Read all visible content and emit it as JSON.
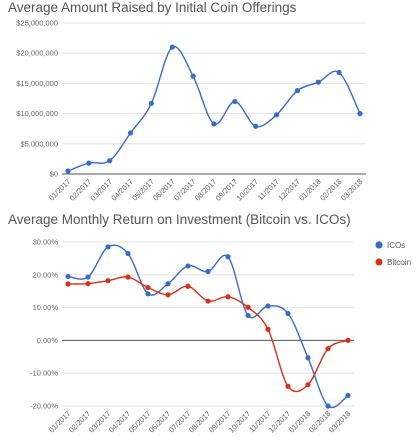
{
  "chart_data": [
    {
      "type": "line",
      "title": "Average Amount Raised by Initial Coin Offerings",
      "xlabel": "",
      "ylabel": "",
      "categories": [
        "01/2017",
        "02/2017",
        "03/2017",
        "04/2017",
        "05/2017",
        "06/2017",
        "07/2017",
        "08/2017",
        "09/2017",
        "10/2017",
        "11/2017",
        "12/2017",
        "01/2018",
        "02/2018",
        "03/2018"
      ],
      "series": [
        {
          "values": [
            500000,
            1800000,
            2200000,
            6800000,
            11700000,
            21000000,
            16200000,
            8300000,
            12000000,
            7900000,
            9800000,
            13800000,
            15200000,
            16800000,
            10000000
          ],
          "color": "#3a6bc9"
        }
      ],
      "yticks": [
        "$0",
        "$5,000,000",
        "$10,000,000",
        "$15,000,000",
        "$20,000,000",
        "$25,000,000"
      ],
      "ylim": [
        0,
        25000000
      ],
      "grid": true
    },
    {
      "type": "line",
      "title": "Average Monthly Return on Investment (Bitcoin vs. ICOs)",
      "xlabel": "",
      "ylabel": "",
      "categories": [
        "01/2017",
        "02/2017",
        "03/2017",
        "04/2017",
        "05/2017",
        "06/2017",
        "07/2017",
        "08/2017",
        "09/2017",
        "10/2017",
        "11/2017",
        "12/2017",
        "01/2018",
        "02/2018",
        "03/2018"
      ],
      "series": [
        {
          "name": "ICOs",
          "values": [
            19.5,
            19.3,
            28.5,
            26.5,
            14.2,
            17.3,
            22.7,
            21.0,
            25.5,
            7.6,
            10.5,
            8.2,
            -5.3,
            -20.0,
            -16.8
          ],
          "color": "#3a6bc9"
        },
        {
          "name": "Bitcoin",
          "values": [
            17.2,
            17.3,
            18.2,
            19.3,
            16.1,
            13.9,
            16.5,
            12.0,
            13.3,
            10.1,
            3.4,
            -14.0,
            -13.5,
            -2.5,
            0.0
          ],
          "color": "#d9301e"
        }
      ],
      "yticks": [
        "-20.00%",
        "-10.00%",
        "0.00%",
        "10.00%",
        "20.00%",
        "30.00%"
      ],
      "ylim": [
        -20,
        30
      ],
      "legend": "right",
      "grid": true
    }
  ]
}
